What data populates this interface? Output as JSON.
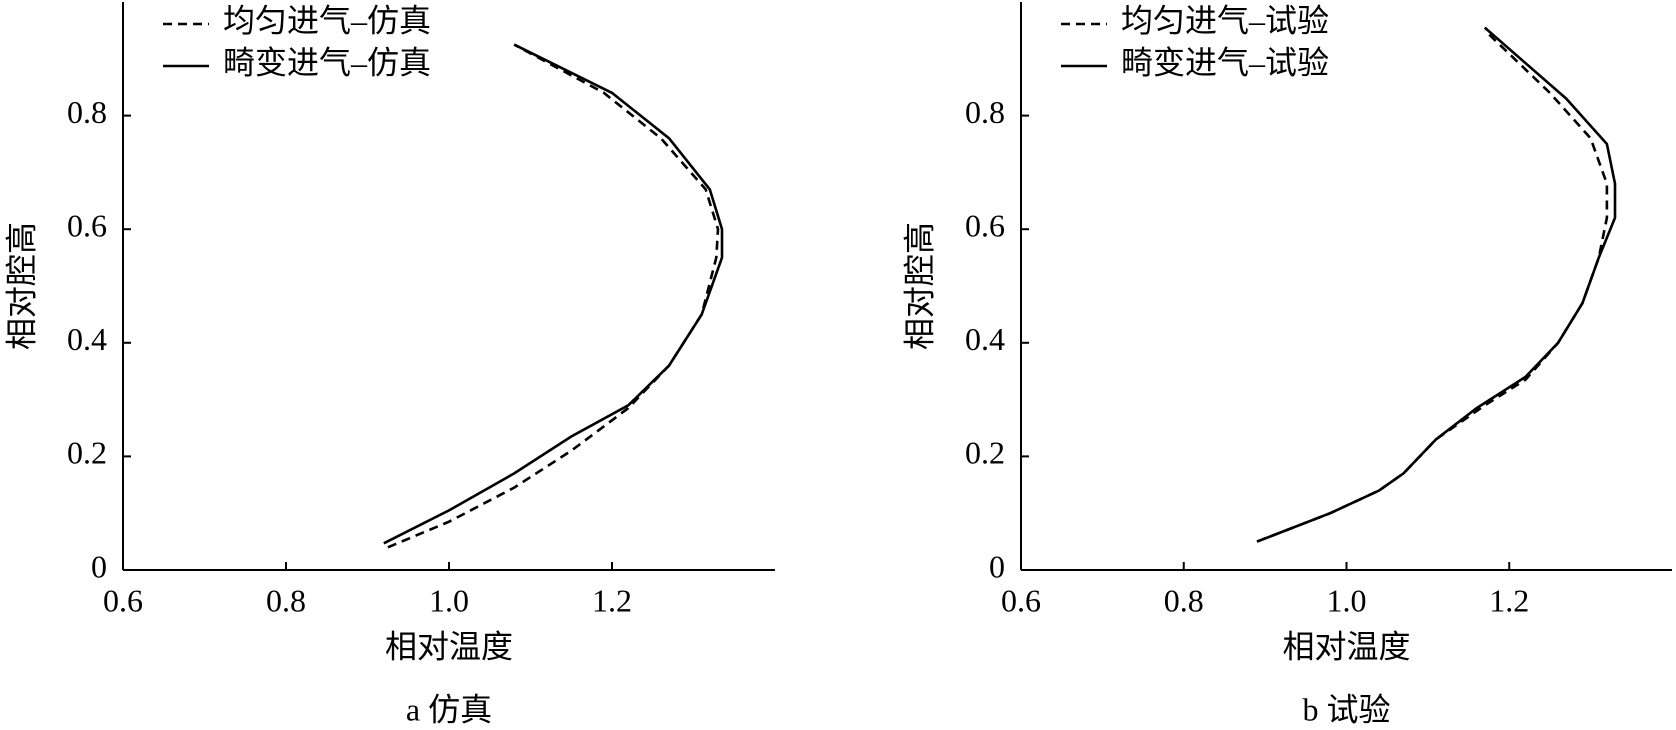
{
  "chart_data": [
    {
      "type": "line",
      "title": "a 仿真",
      "x_label": "相对温度",
      "y_label": "相对腔高",
      "xlim": [
        0.6,
        1.4
      ],
      "ylim": [
        0,
        1.0
      ],
      "xticks": [
        0.6,
        0.8,
        {
          "value": 1.0,
          "label": "1.0"
        },
        1.2
      ],
      "yticks": [
        0,
        0.2,
        0.4,
        0.6,
        0.8
      ],
      "legend": "upper left",
      "series": [
        {
          "name": "均匀进气–仿真",
          "color": "#000000",
          "style": "dashed",
          "x": [
            0.925,
            1.0,
            1.08,
            1.15,
            1.22,
            1.27,
            1.31,
            1.328,
            1.33,
            1.315,
            1.26,
            1.19,
            1.08
          ],
          "values": [
            0.04,
            0.085,
            0.145,
            0.21,
            0.285,
            0.36,
            0.45,
            0.55,
            0.6,
            0.67,
            0.76,
            0.84,
            0.925
          ]
        },
        {
          "name": "畸变进气–仿真",
          "color": "#000000",
          "style": "solid",
          "x": [
            0.92,
            1.0,
            1.08,
            1.15,
            1.22,
            1.27,
            1.31,
            1.335,
            1.335,
            1.32,
            1.27,
            1.2,
            1.08
          ],
          "values": [
            0.047,
            0.105,
            0.17,
            0.235,
            0.29,
            0.36,
            0.45,
            0.55,
            0.6,
            0.67,
            0.76,
            0.84,
            0.925
          ]
        }
      ]
    },
    {
      "type": "line",
      "title": "b 试验",
      "x_label": "相对温度",
      "y_label": "相对腔高",
      "xlim": [
        0.6,
        1.4
      ],
      "ylim": [
        0,
        1.0
      ],
      "xticks": [
        0.6,
        0.8,
        {
          "value": 1.0,
          "label": "1.0"
        },
        1.2
      ],
      "yticks": [
        0,
        0.2,
        0.4,
        0.6,
        0.8
      ],
      "legend": "upper left",
      "series": [
        {
          "name": "均匀进气–试验",
          "color": "#000000",
          "style": "dashed",
          "x": [
            0.89,
            0.98,
            1.04,
            1.07,
            1.11,
            1.17,
            1.22,
            1.26,
            1.29,
            1.31,
            1.32,
            1.32,
            1.3,
            1.25,
            1.17
          ],
          "values": [
            0.05,
            0.1,
            0.14,
            0.17,
            0.23,
            0.29,
            0.335,
            0.4,
            0.47,
            0.55,
            0.62,
            0.68,
            0.76,
            0.84,
            0.95
          ]
        },
        {
          "name": "畸变进气–试验",
          "color": "#000000",
          "style": "solid",
          "x": [
            0.89,
            0.98,
            1.04,
            1.07,
            1.11,
            1.16,
            1.22,
            1.26,
            1.29,
            1.31,
            1.33,
            1.33,
            1.32,
            1.27,
            1.17
          ],
          "values": [
            0.05,
            0.1,
            0.14,
            0.17,
            0.23,
            0.285,
            0.34,
            0.4,
            0.47,
            0.55,
            0.62,
            0.68,
            0.75,
            0.83,
            0.955
          ]
        }
      ]
    }
  ]
}
